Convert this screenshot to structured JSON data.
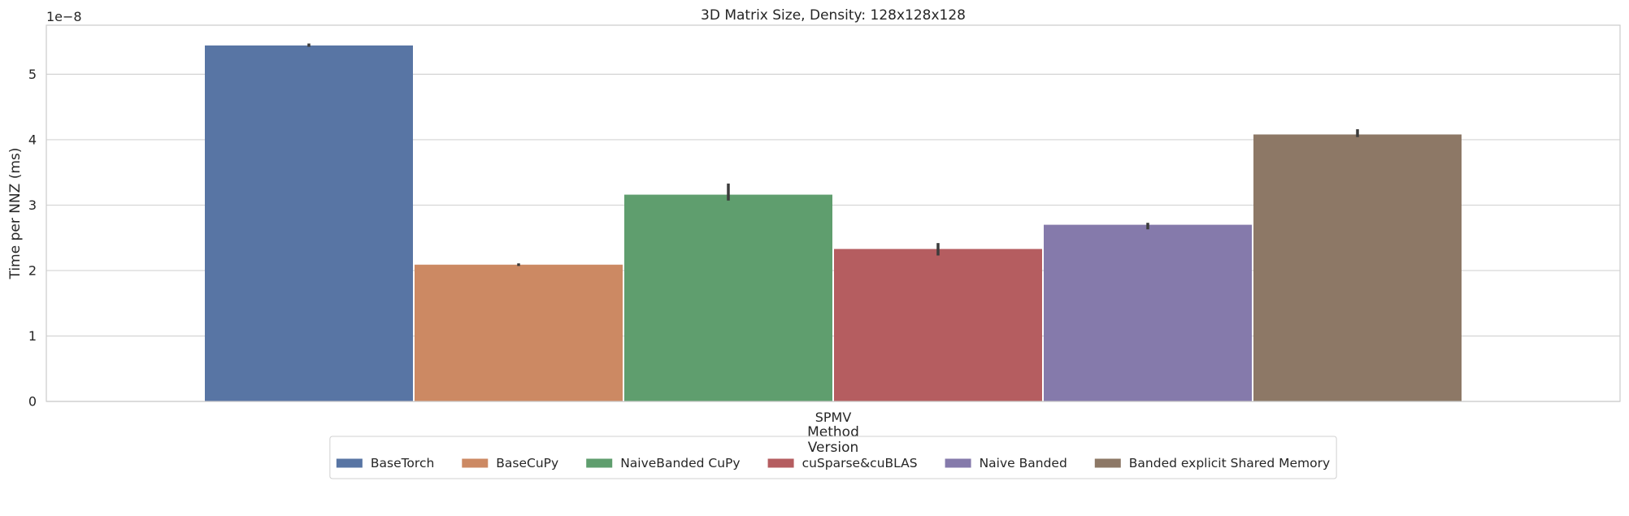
{
  "chart_data": {
    "type": "bar",
    "title": "3D Matrix Size, Density: 128x128x128",
    "xlabel": "Method",
    "ylabel": "Time per NNZ (ms)",
    "y_offset_text": "1e−8",
    "y_scale_factor": 1e-08,
    "categories": [
      "SPMV"
    ],
    "ylim": [
      0,
      5.75
    ],
    "yticks": [
      0,
      1,
      2,
      3,
      4,
      5
    ],
    "grid": "horizontal",
    "legend": {
      "title": "Version",
      "placement": "bottom-center",
      "ncol": 6
    },
    "series": [
      {
        "name": "BaseTorch",
        "values": [
          5.44
        ],
        "error": [
          [
            5.42,
            5.47
          ]
        ],
        "color": "#5875a4"
      },
      {
        "name": "BaseCuPy",
        "values": [
          2.09
        ],
        "error": [
          [
            2.07,
            2.11
          ]
        ],
        "color": "#cc8963"
      },
      {
        "name": "NaiveBanded CuPy",
        "values": [
          3.16
        ],
        "error": [
          [
            3.07,
            3.33
          ]
        ],
        "color": "#5f9e6e"
      },
      {
        "name": "cuSparse&cuBLAS",
        "values": [
          2.33
        ],
        "error": [
          [
            2.23,
            2.42
          ]
        ],
        "color": "#b55d60"
      },
      {
        "name": "Naive Banded",
        "values": [
          2.7
        ],
        "error": [
          [
            2.63,
            2.73
          ]
        ],
        "color": "#857aab"
      },
      {
        "name": "Banded explicit Shared Memory",
        "values": [
          4.08
        ],
        "error": [
          [
            4.04,
            4.16
          ]
        ],
        "color": "#8d7866"
      }
    ]
  }
}
